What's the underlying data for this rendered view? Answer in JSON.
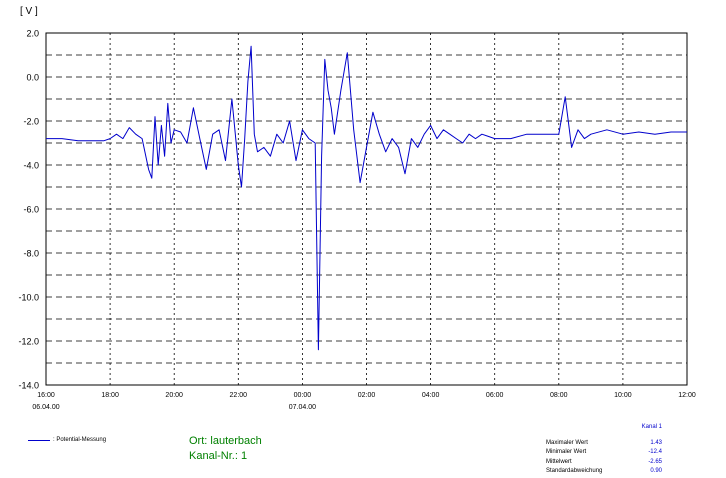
{
  "chart_data": {
    "type": "line",
    "title": "",
    "ylabel": "[ V ]",
    "xlabel": "",
    "ylim": [
      -14.0,
      2.0
    ],
    "y_ticks": [
      "2.0",
      "0.0",
      "-2.0",
      "-4.0",
      "-6.0",
      "-8.0",
      "-10.0",
      "-12.0",
      "-14.0"
    ],
    "x_ticks": [
      "16:00",
      "18:00",
      "20:00",
      "22:00",
      "00:00",
      "02:00",
      "04:00",
      "06:00",
      "08:00",
      "10:00",
      "12:00"
    ],
    "x_dates": [
      {
        "tick": "16:00",
        "date": "06.04.00"
      },
      {
        "tick": "00:00",
        "date": "07.04.00"
      }
    ],
    "x_hours_range": [
      16,
      36
    ],
    "grid": true,
    "series": [
      {
        "name": ": Potential-Messung",
        "color": "#0000cc",
        "x": [
          16.0,
          16.5,
          17.0,
          17.5,
          17.8,
          18.0,
          18.2,
          18.4,
          18.6,
          18.8,
          19.0,
          19.2,
          19.3,
          19.4,
          19.5,
          19.6,
          19.7,
          19.8,
          19.9,
          20.0,
          20.2,
          20.4,
          20.6,
          20.8,
          21.0,
          21.2,
          21.4,
          21.6,
          21.8,
          22.0,
          22.1,
          22.2,
          22.3,
          22.4,
          22.5,
          22.6,
          22.8,
          23.0,
          23.2,
          23.4,
          23.6,
          23.8,
          24.0,
          24.2,
          24.4,
          24.5,
          24.6,
          24.7,
          24.8,
          24.9,
          25.0,
          25.2,
          25.4,
          25.6,
          25.8,
          26.0,
          26.2,
          26.4,
          26.6,
          26.8,
          27.0,
          27.2,
          27.4,
          27.6,
          27.8,
          28.0,
          28.2,
          28.4,
          28.6,
          28.8,
          29.0,
          29.2,
          29.4,
          29.6,
          29.8,
          30.0,
          30.5,
          31.0,
          31.5,
          32.0,
          32.2,
          32.4,
          32.6,
          32.8,
          33.0,
          33.5,
          34.0,
          34.5,
          35.0,
          35.5,
          36.0
        ],
        "values": [
          -2.8,
          -2.8,
          -2.9,
          -2.9,
          -2.9,
          -2.8,
          -2.6,
          -2.8,
          -2.3,
          -2.6,
          -2.8,
          -4.2,
          -4.6,
          -1.8,
          -4.0,
          -2.2,
          -3.6,
          -1.2,
          -3.0,
          -2.4,
          -2.5,
          -3.0,
          -1.4,
          -2.8,
          -4.2,
          -2.6,
          -2.4,
          -3.8,
          -1.0,
          -4.0,
          -5.0,
          -2.8,
          -0.2,
          1.4,
          -2.6,
          -3.4,
          -3.2,
          -3.6,
          -2.6,
          -3.0,
          -2.0,
          -3.8,
          -2.4,
          -2.8,
          -3.0,
          -12.4,
          -3.6,
          0.8,
          -0.6,
          -1.4,
          -2.6,
          -0.6,
          1.1,
          -2.4,
          -4.8,
          -3.2,
          -1.6,
          -2.6,
          -3.4,
          -2.8,
          -3.2,
          -4.4,
          -2.8,
          -3.2,
          -2.6,
          -2.2,
          -2.8,
          -2.4,
          -2.6,
          -2.8,
          -3.0,
          -2.6,
          -2.8,
          -2.6,
          -2.7,
          -2.8,
          -2.8,
          -2.6,
          -2.6,
          -2.6,
          -0.9,
          -3.2,
          -2.4,
          -2.8,
          -2.6,
          -2.4,
          -2.6,
          -2.5,
          -2.6,
          -2.5,
          -2.5
        ]
      }
    ]
  },
  "info": {
    "ort": "Ort: lauterbach",
    "kanal": "Kanal-Nr.: 1"
  },
  "stats": {
    "header": "Kanal 1",
    "rows": [
      {
        "label": "Maximaler Wert",
        "value": "1.43"
      },
      {
        "label": "Minimaler Wert",
        "value": "-12.4"
      },
      {
        "label": "Mittelwert",
        "value": "-2.65"
      },
      {
        "label": "Standardabweichung",
        "value": "0.90"
      }
    ]
  }
}
